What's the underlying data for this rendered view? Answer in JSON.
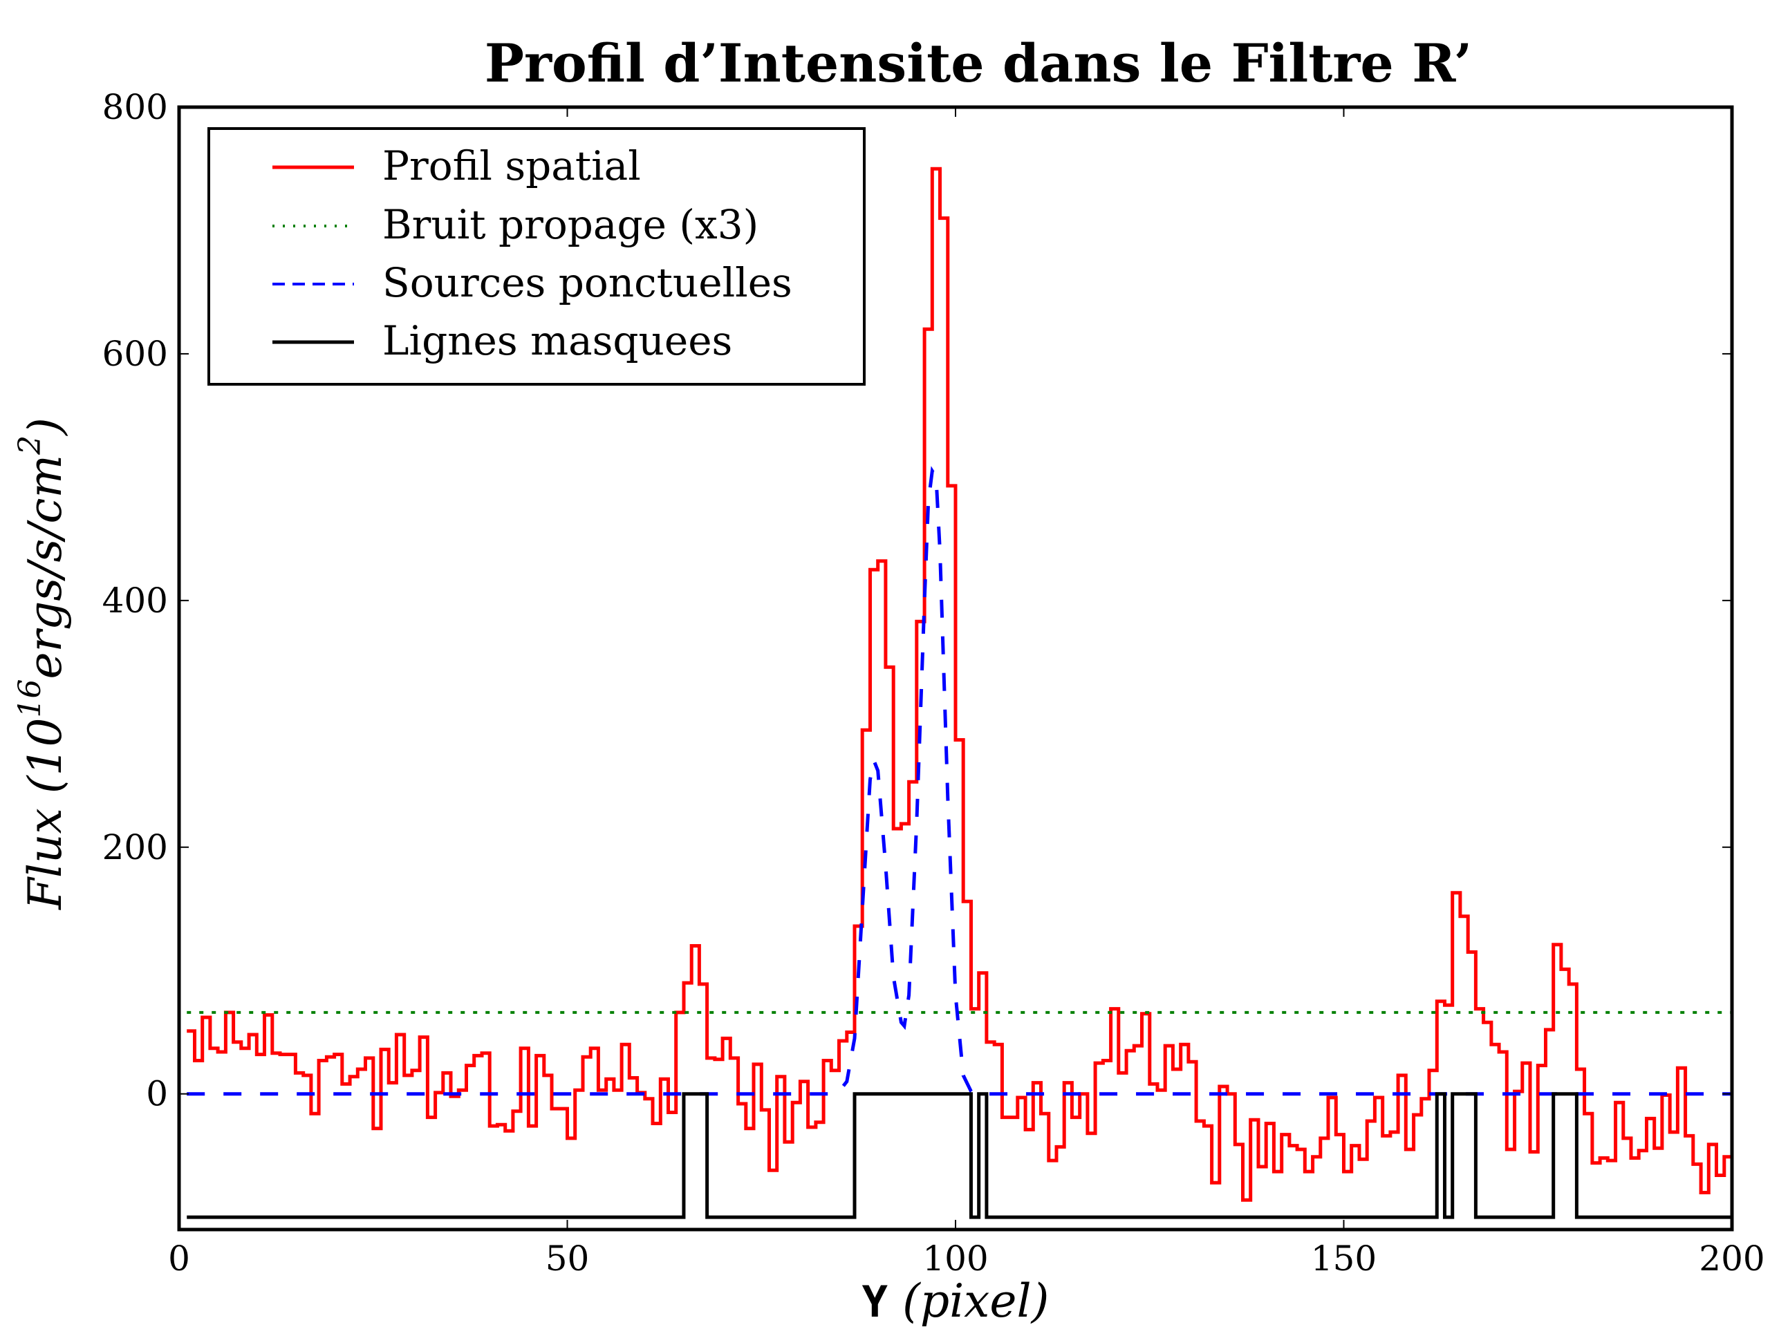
{
  "chart_data": {
    "type": "line",
    "title": "Profil d’Intensite dans le Filtre R’",
    "xlabel": "Y (pixel)",
    "ylabel": "Flux (10^16 ergs/s/cm^2)",
    "xlim": [
      0,
      200
    ],
    "ylim": [
      -110,
      800
    ],
    "xticks": [
      0,
      50,
      100,
      150,
      200
    ],
    "yticks": [
      0,
      200,
      400,
      600,
      800
    ],
    "grid": false,
    "legend_position": "upper left",
    "series": [
      {
        "name": "Profil spatial",
        "style": "steps",
        "color": "#ff0000",
        "x_start": 1,
        "step": 1,
        "values": [
          51,
          27,
          62,
          37,
          34,
          66,
          42,
          37,
          48,
          32,
          64,
          33,
          32,
          32,
          17,
          15,
          -16,
          27,
          30,
          32,
          8,
          14,
          20,
          29,
          -28,
          36,
          9,
          48,
          15,
          19,
          46,
          -19,
          1,
          17,
          -2,
          3,
          23,
          31,
          33,
          -26,
          -25,
          -30,
          -14,
          37,
          -26,
          31,
          15,
          -12,
          -12,
          -36,
          3,
          30,
          37,
          3,
          12,
          3,
          40,
          13,
          1,
          -4,
          -24,
          12,
          -15,
          66,
          90,
          120,
          89,
          29,
          28,
          45,
          29,
          -8,
          -28,
          24,
          -13,
          -62,
          14,
          -39,
          -7,
          10,
          -27,
          -23,
          27,
          19,
          43,
          50,
          136,
          295,
          425,
          432,
          346,
          215,
          219,
          253,
          383,
          620,
          750,
          710,
          493,
          287,
          156,
          69,
          98,
          42,
          40,
          -19,
          -19,
          -3,
          -29,
          9,
          -16,
          -54,
          -43,
          9,
          -19,
          0,
          -32,
          25,
          27,
          69,
          17,
          35,
          39,
          65,
          8,
          3,
          39,
          20,
          40,
          26,
          -22,
          -26,
          -72,
          6,
          0,
          -41,
          -86,
          -21,
          -59,
          -24,
          -63,
          -33,
          -42,
          -45,
          -63,
          -51,
          -36,
          -3,
          -33,
          -63,
          -42,
          -53,
          -22,
          -3,
          -34,
          -31,
          15,
          -45,
          -17,
          -4,
          19,
          75,
          72,
          163,
          144,
          115,
          69,
          58,
          40,
          34,
          -45,
          2,
          25,
          -47,
          23,
          52,
          121,
          101,
          89,
          20,
          -16,
          -56,
          -52,
          -54,
          -7,
          -36,
          -52,
          -46,
          -20,
          -44,
          -1,
          -31,
          21,
          -34,
          -57,
          -80,
          -41,
          -66,
          -51
        ]
      },
      {
        "name": "Bruit propage (x3)",
        "style": "dotted",
        "color": "#008000",
        "x": [
          1,
          200
        ],
        "values": [
          66,
          66
        ]
      },
      {
        "name": "Sources ponctuelles",
        "style": "dashed",
        "color": "#0000ff",
        "x": [
          1,
          84,
          85,
          86,
          87,
          88,
          89,
          89.5,
          90,
          91,
          92,
          93,
          93.4,
          94,
          95,
          96,
          96.5,
          97,
          97.5,
          98,
          99,
          100,
          101,
          102,
          103,
          200
        ],
        "values": [
          0,
          0,
          2,
          10,
          45,
          150,
          255,
          270,
          262,
          185,
          95,
          58,
          55,
          80,
          220,
          400,
          480,
          505,
          500,
          440,
          240,
          80,
          15,
          2,
          0,
          0
        ]
      },
      {
        "name": "Lignes masquees",
        "style": "steps",
        "color": "#000000",
        "low_value": -100,
        "high_value": 0,
        "x_range": [
          1,
          200
        ],
        "masked_intervals_high": [
          [
            65,
            68
          ],
          [
            87,
            102
          ],
          [
            103,
            104
          ],
          [
            162,
            163
          ],
          [
            164,
            167
          ],
          [
            177,
            180
          ]
        ]
      }
    ]
  },
  "legend": {
    "items": [
      {
        "label": "Profil spatial",
        "color": "#ff0000",
        "style": "solid"
      },
      {
        "label": "Bruit propage (x3)",
        "color": "#008000",
        "style": "dotted"
      },
      {
        "label": "Sources ponctuelles",
        "color": "#0000ff",
        "style": "dashed"
      },
      {
        "label": "Lignes masquees",
        "color": "#000000",
        "style": "solid"
      }
    ]
  },
  "axes": {
    "x_tick_labels": [
      "0",
      "50",
      "100",
      "150",
      "200"
    ],
    "y_tick_labels": [
      "0",
      "200",
      "400",
      "600",
      "800"
    ],
    "xlabel_prefix": "Y",
    "xlabel_unit": "(pixel)",
    "ylabel_main": "Flux (10",
    "ylabel_exp": "16",
    "ylabel_rest": "ergs/s/cm",
    "ylabel_exp2": "2",
    "ylabel_close": ")"
  }
}
